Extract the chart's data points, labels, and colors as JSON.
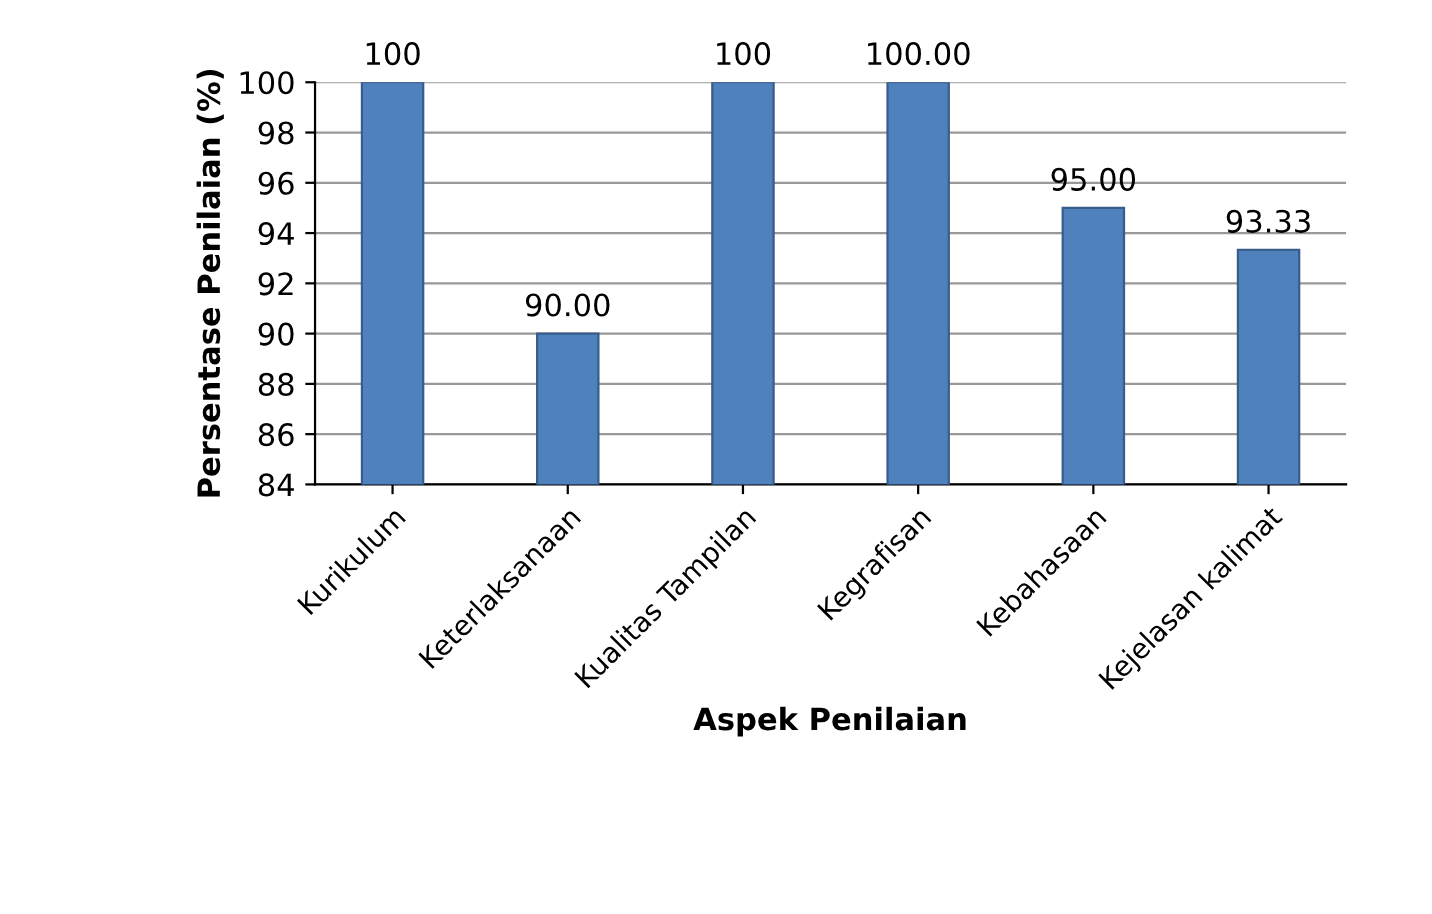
{
  "chart_data": {
    "type": "bar",
    "xlabel": "Aspek Penilaian",
    "ylabel": "Persentase Penilaian (%)",
    "categories": [
      "Kurikulum",
      "Keterlaksanaan",
      "Kualitas Tampilan",
      "Kegrafisan",
      "Kebahasaan",
      "Kejelasan kalimat"
    ],
    "values": [
      100,
      90,
      100,
      100,
      95,
      93.33
    ],
    "value_labels": [
      "100",
      "90.00",
      "100",
      "100.00",
      "95.00",
      "93.33"
    ],
    "color": "#4f81bd",
    "ylim": [
      84,
      100
    ],
    "yticks": [
      84,
      86,
      88,
      90,
      92,
      94,
      96,
      98,
      100
    ],
    "grid": "y",
    "legend": false
  }
}
